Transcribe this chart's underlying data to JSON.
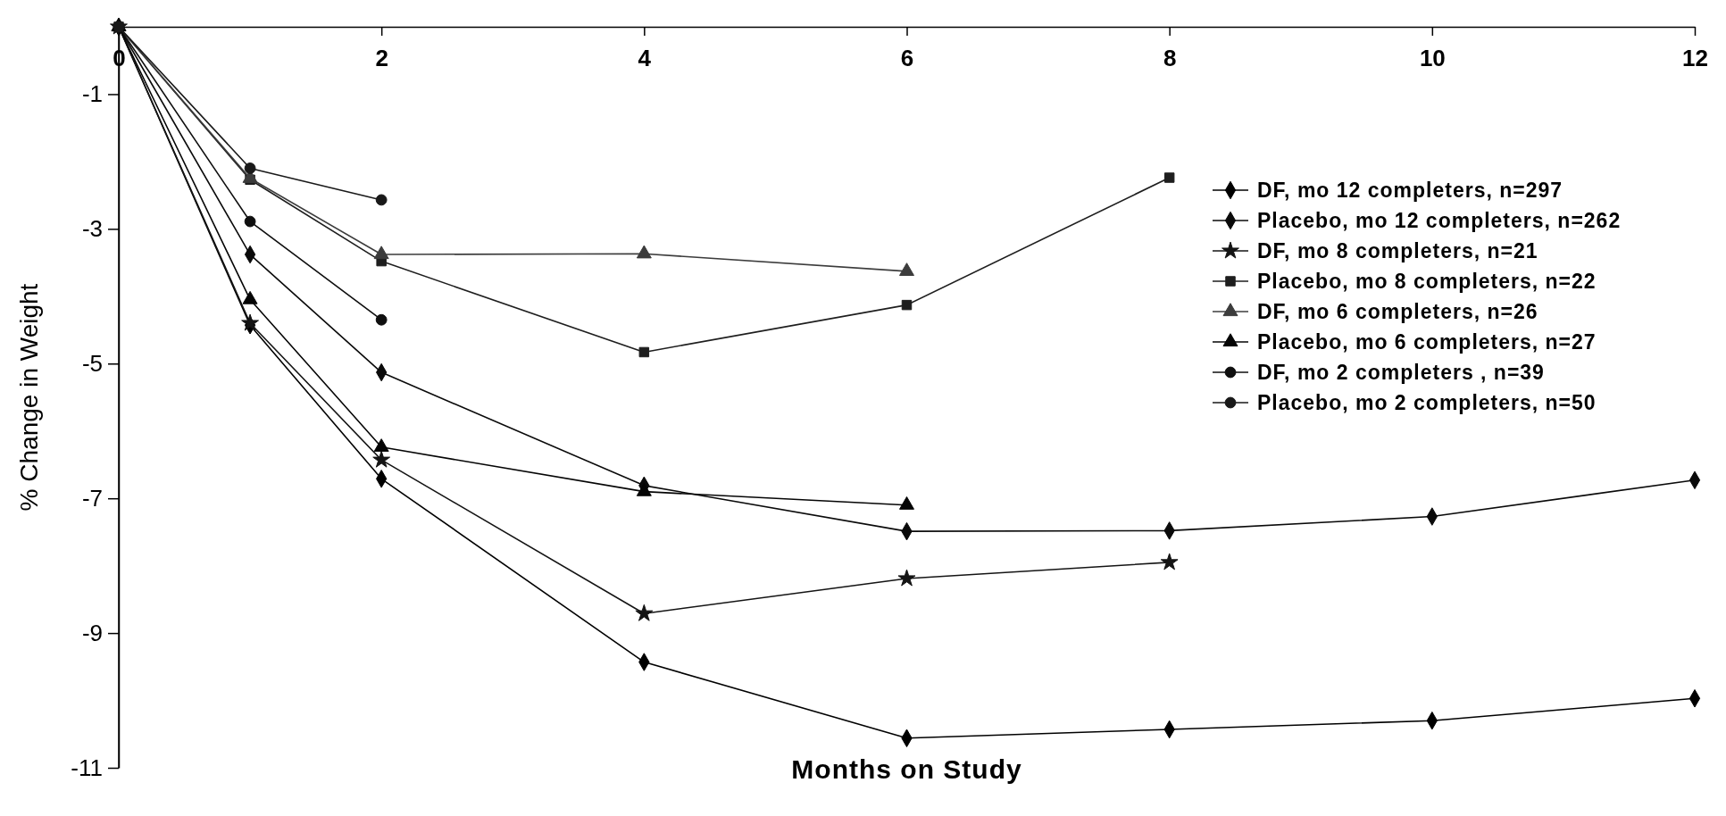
{
  "chart_data": {
    "type": "line",
    "xlabel": "Months on Study",
    "ylabel": "% Change in Weight",
    "xlim": [
      0,
      12
    ],
    "xticks": [
      0,
      2,
      4,
      6,
      8,
      10,
      12
    ],
    "ylim": [
      -11,
      0
    ],
    "yticks": [
      -1,
      -3,
      -5,
      -7,
      -9,
      -11
    ],
    "grid": false,
    "legend": "right",
    "line_style": "solid",
    "series": [
      {
        "name": "DF, mo 12 completers, n=297",
        "color": "#000000",
        "marker": "diamond",
        "x": [
          0,
          1,
          2,
          4,
          6,
          8,
          10,
          12
        ],
        "values": [
          0,
          -4.43,
          -6.71,
          -9.43,
          -10.56,
          -10.43,
          -10.3,
          -9.97
        ]
      },
      {
        "name": "Placebo, mo 12 completers, n=262",
        "color": "#0a0a0a",
        "marker": "diamond",
        "x": [
          0,
          1,
          2,
          4,
          6,
          8,
          10,
          12
        ],
        "values": [
          0,
          -3.38,
          -5.13,
          -6.81,
          -7.49,
          -7.48,
          -7.27,
          -6.73
        ]
      },
      {
        "name": "DF, mo 8 completers, n=21",
        "color": "#141414",
        "marker": "star",
        "x": [
          0,
          1,
          2,
          4,
          6,
          8
        ],
        "values": [
          0,
          -4.4,
          -6.43,
          -8.71,
          -8.19,
          -7.95
        ]
      },
      {
        "name": "Placebo, mo 8 completers, n=22",
        "color": "#1e1e1e",
        "marker": "square",
        "x": [
          0,
          1,
          2,
          4,
          6,
          8
        ],
        "values": [
          0,
          -2.27,
          -3.48,
          -4.83,
          -4.13,
          -2.24
        ]
      },
      {
        "name": "DF, mo 6 completers, n=26",
        "color": "#3c3c3c",
        "marker": "triangle",
        "x": [
          0,
          1,
          2,
          4,
          6
        ],
        "values": [
          0,
          -2.25,
          -3.38,
          -3.37,
          -3.63
        ]
      },
      {
        "name": "Placebo, mo 6 completers, n=27",
        "color": "#050505",
        "marker": "triangle",
        "x": [
          0,
          1,
          2,
          4,
          6
        ],
        "values": [
          0,
          -4.05,
          -6.24,
          -6.9,
          -7.1
        ]
      },
      {
        "name": "DF, mo 2 completers , n=39",
        "color": "#0f0f0f",
        "marker": "circle",
        "x": [
          0,
          1,
          2
        ],
        "values": [
          0,
          -2.89,
          -4.35
        ]
      },
      {
        "name": "Placebo, mo 2 completers, n=50",
        "color": "#191919",
        "marker": "circle",
        "x": [
          0,
          1,
          2
        ],
        "values": [
          0,
          -2.1,
          -2.57
        ]
      }
    ]
  }
}
